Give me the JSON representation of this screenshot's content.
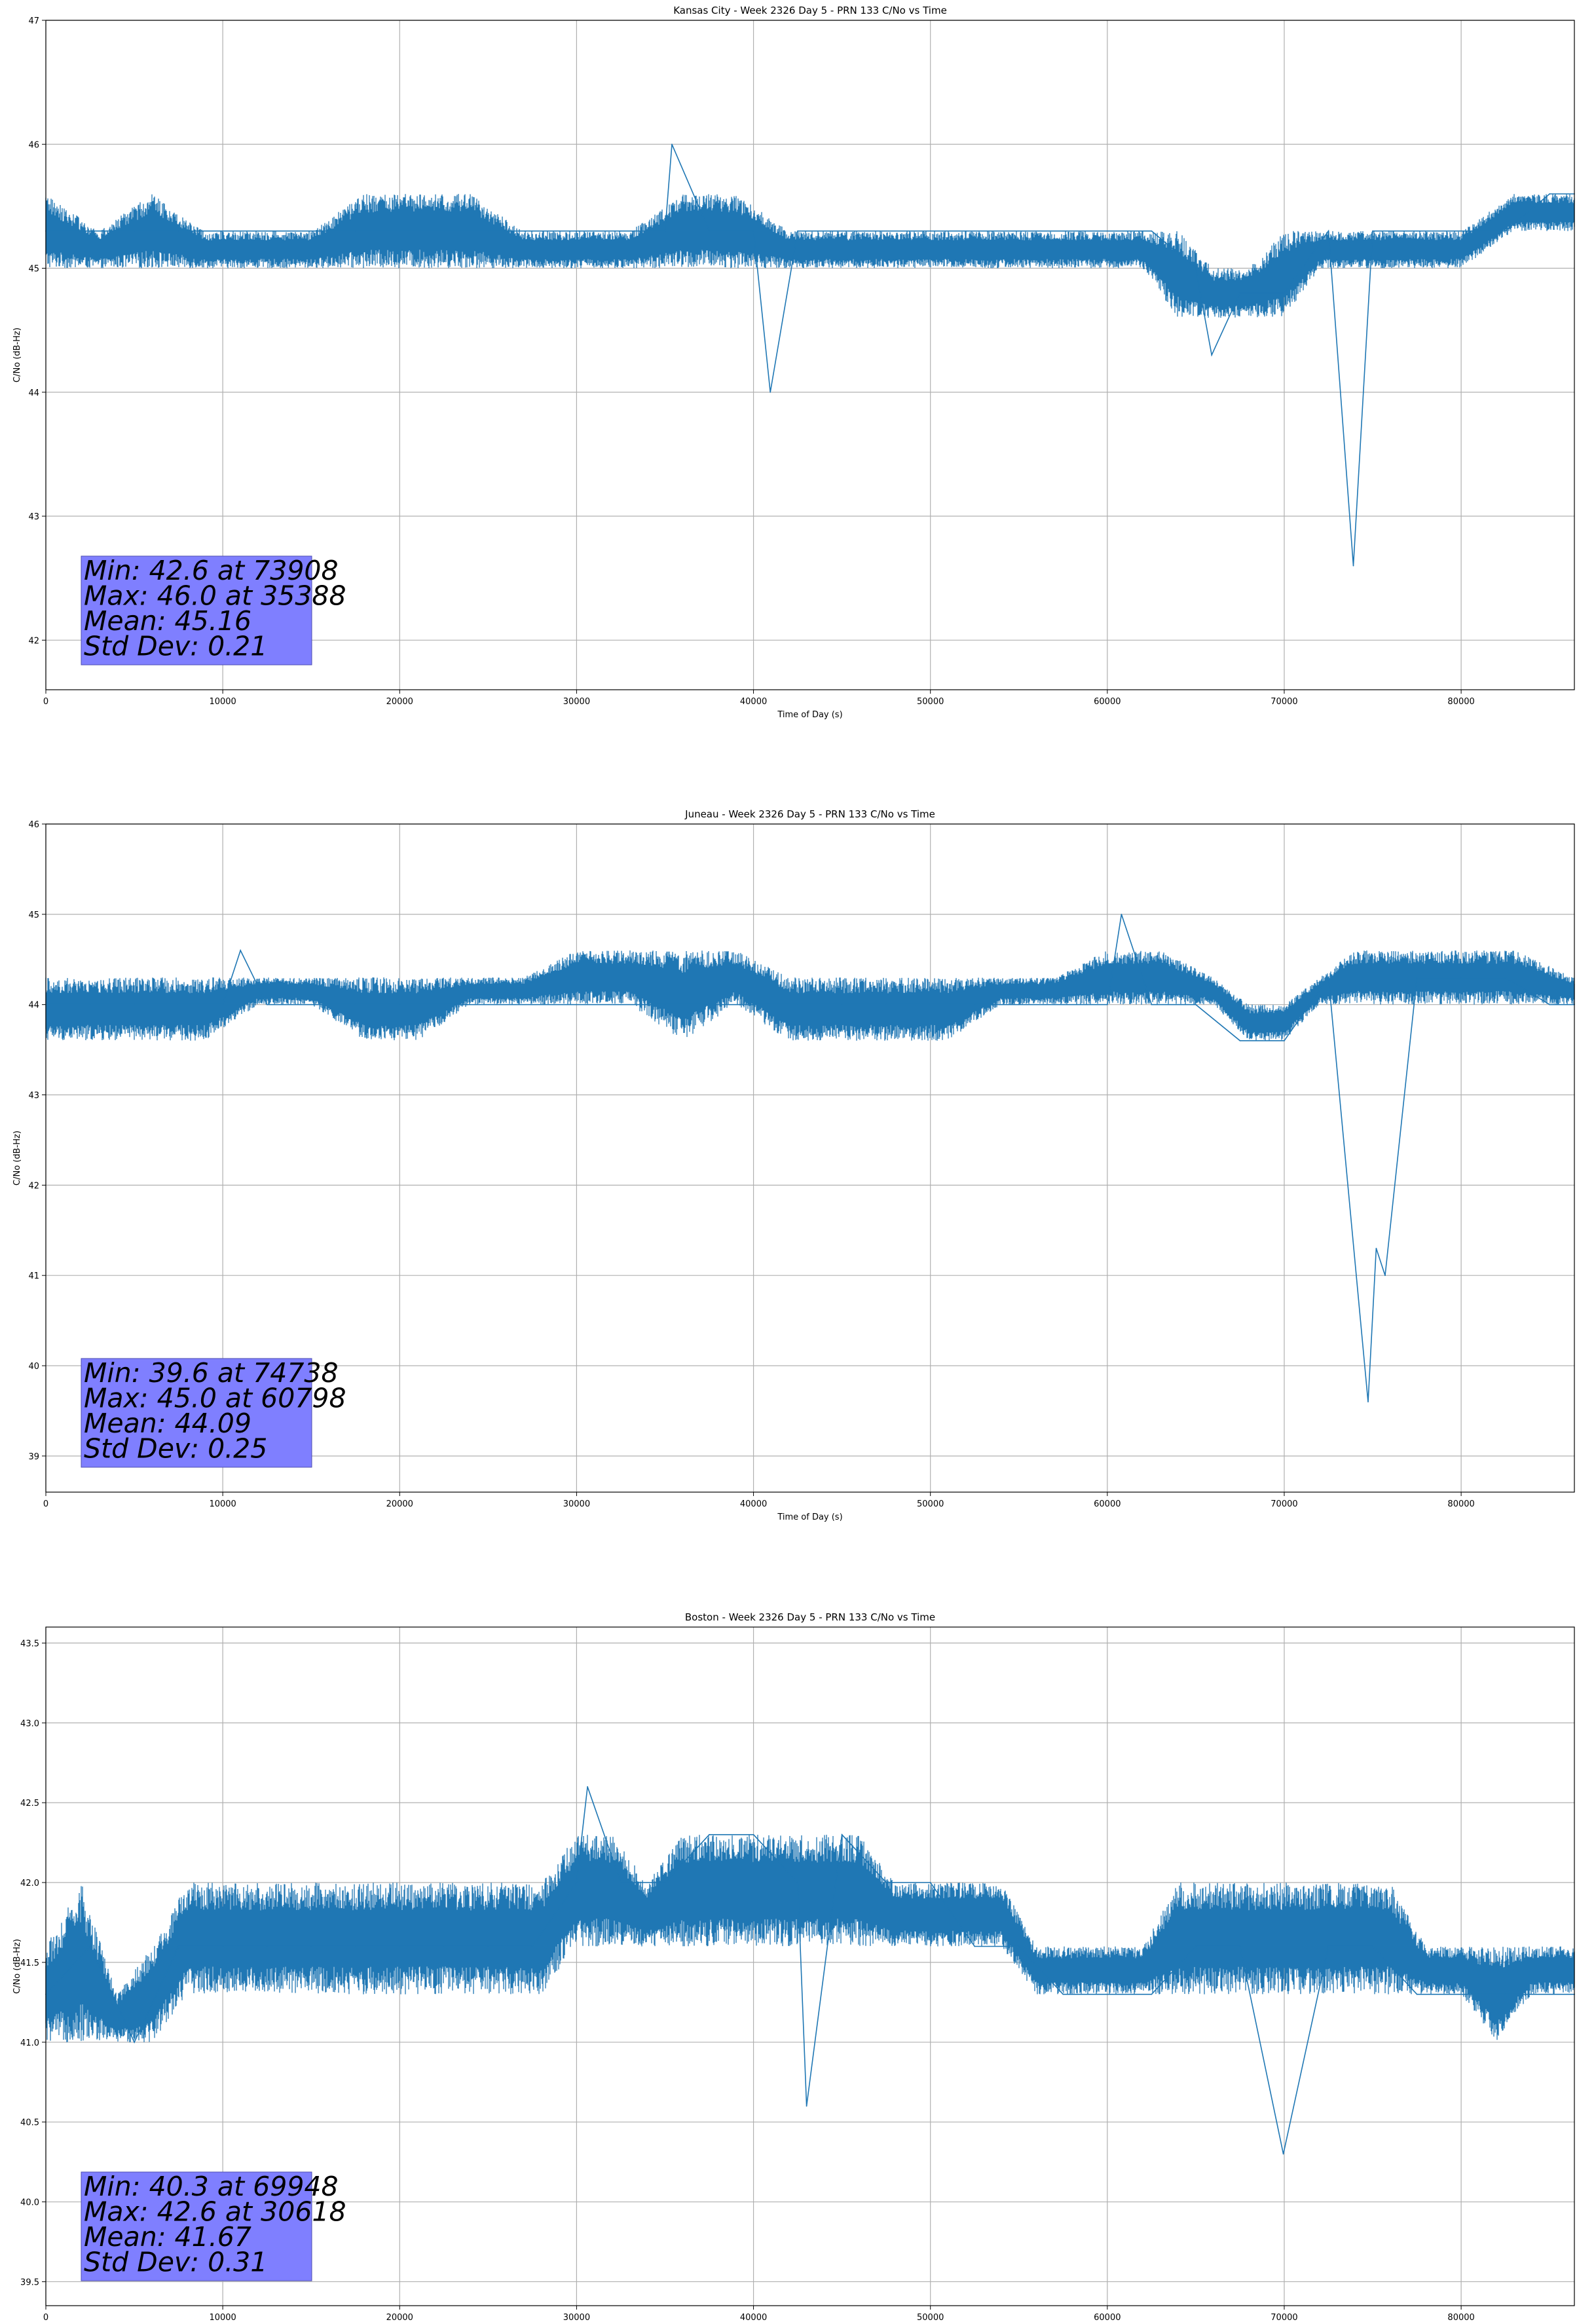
{
  "chart_data": [
    {
      "type": "line",
      "title": "Kansas City - Week 2326 Day 5 - PRN 133 C/No vs Time",
      "xlabel": "Time of Day (s)",
      "ylabel": "C/No (dB-Hz)",
      "xlim": [
        0,
        86400
      ],
      "ylim": [
        41.6,
        47.0
      ],
      "xticks": [
        "0",
        "10000",
        "20000",
        "30000",
        "40000",
        "50000",
        "60000",
        "70000",
        "80000"
      ],
      "yticks": [
        "42",
        "43",
        "44",
        "45",
        "46",
        "47"
      ],
      "grid": true,
      "color": "#1f77b4",
      "series": [
        {
          "x": [
            0,
            2500,
            5000,
            7500,
            10000,
            12500,
            15000,
            17500,
            20000,
            22500,
            25000,
            27500,
            30000,
            32500,
            35000,
            35388,
            37500,
            40000,
            40950,
            42500,
            45000,
            47500,
            50000,
            52500,
            55000,
            57500,
            60000,
            62500,
            65000,
            65900,
            67500,
            70000,
            72500,
            73908,
            75000,
            77500,
            80000,
            82500,
            85000,
            86400
          ],
          "values": [
            45.3,
            45.3,
            45.3,
            45.3,
            45.3,
            45.3,
            45.3,
            45.3,
            45.3,
            45.3,
            45.3,
            45.3,
            45.3,
            45.3,
            45.3,
            46.0,
            45.3,
            45.3,
            44.0,
            45.3,
            45.3,
            45.3,
            45.3,
            45.3,
            45.3,
            45.3,
            45.3,
            45.3,
            45.0,
            44.3,
            44.8,
            44.8,
            45.3,
            42.6,
            45.3,
            45.3,
            45.3,
            45.3,
            45.6,
            45.6
          ],
          "band_x": [
            0,
            3000,
            6000,
            9000,
            12000,
            15000,
            18000,
            21000,
            24000,
            27000,
            30000,
            33000,
            36000,
            39000,
            42000,
            45000,
            48000,
            51000,
            54000,
            57000,
            60000,
            62000,
            64000,
            66000,
            68000,
            70000,
            72000,
            74000,
            77000,
            80000,
            83000,
            86400
          ],
          "band_low": [
            45.0,
            45.0,
            45.0,
            45.0,
            45.0,
            45.0,
            45.0,
            45.0,
            45.0,
            45.0,
            45.0,
            45.0,
            45.0,
            45.0,
            45.0,
            45.0,
            45.0,
            45.0,
            45.0,
            45.0,
            45.0,
            45.0,
            44.6,
            44.6,
            44.6,
            44.6,
            45.0,
            45.0,
            45.0,
            45.0,
            45.3,
            45.3
          ],
          "band_high": [
            45.6,
            45.3,
            45.6,
            45.3,
            45.3,
            45.3,
            45.6,
            45.6,
            45.6,
            45.3,
            45.3,
            45.3,
            45.6,
            45.6,
            45.3,
            45.3,
            45.3,
            45.3,
            45.3,
            45.3,
            45.3,
            45.3,
            45.3,
            45.0,
            45.0,
            45.3,
            45.3,
            45.3,
            45.3,
            45.3,
            45.6,
            45.6
          ]
        }
      ],
      "stats": [
        "Min: 42.6 at 73908",
        "Max: 46.0 at 35388",
        "Mean: 45.16",
        "Std Dev: 0.21"
      ]
    },
    {
      "type": "line",
      "title": "Juneau - Week 2326 Day 5 - PRN 133 C/No vs Time",
      "xlabel": "Time of Day (s)",
      "ylabel": "C/No (dB-Hz)",
      "xlim": [
        0,
        86400
      ],
      "ylim": [
        38.6,
        46.0
      ],
      "xticks": [
        "0",
        "10000",
        "20000",
        "30000",
        "40000",
        "50000",
        "60000",
        "70000",
        "80000"
      ],
      "yticks": [
        "39",
        "40",
        "41",
        "42",
        "43",
        "44",
        "45",
        "46"
      ],
      "grid": true,
      "color": "#1f77b4",
      "series": [
        {
          "x": [
            0,
            2500,
            5000,
            7500,
            10000,
            11000,
            12500,
            15000,
            17500,
            20000,
            22500,
            25000,
            27500,
            30000,
            32500,
            35000,
            37500,
            40000,
            42500,
            45000,
            47500,
            50000,
            52500,
            55000,
            57500,
            60000,
            60798,
            62500,
            65000,
            67500,
            70000,
            72500,
            74738,
            75200,
            75700,
            77500,
            80000,
            82500,
            85000,
            86400
          ],
          "values": [
            44.0,
            44.0,
            44.0,
            44.0,
            44.0,
            44.6,
            44.0,
            44.0,
            44.0,
            44.0,
            44.0,
            44.0,
            44.0,
            44.0,
            44.0,
            44.0,
            44.0,
            44.0,
            44.0,
            44.0,
            44.0,
            44.0,
            44.0,
            44.0,
            44.0,
            44.0,
            45.0,
            44.0,
            44.0,
            43.6,
            43.6,
            44.3,
            39.6,
            41.3,
            41.0,
            44.3,
            44.3,
            44.3,
            44.0,
            44.0
          ],
          "band_x": [
            0,
            3000,
            6000,
            9000,
            12000,
            15000,
            18000,
            21000,
            24000,
            27000,
            30000,
            33000,
            36000,
            39000,
            42000,
            45000,
            48000,
            51000,
            54000,
            57000,
            60000,
            63000,
            66000,
            68000,
            70000,
            72000,
            74000,
            77000,
            80000,
            83000,
            86400
          ],
          "band_low": [
            43.6,
            43.6,
            43.6,
            43.6,
            44.0,
            44.0,
            43.6,
            43.6,
            44.0,
            44.0,
            44.0,
            44.0,
            43.6,
            44.0,
            43.6,
            43.6,
            43.6,
            43.6,
            44.0,
            44.0,
            44.0,
            44.0,
            44.0,
            43.6,
            43.6,
            44.0,
            44.0,
            44.0,
            44.0,
            44.0,
            44.0
          ],
          "band_high": [
            44.3,
            44.3,
            44.3,
            44.3,
            44.3,
            44.3,
            44.3,
            44.3,
            44.3,
            44.3,
            44.6,
            44.6,
            44.6,
            44.6,
            44.3,
            44.3,
            44.3,
            44.3,
            44.3,
            44.3,
            44.6,
            44.6,
            44.3,
            44.0,
            44.0,
            44.3,
            44.6,
            44.6,
            44.6,
            44.6,
            44.3
          ]
        }
      ],
      "stats": [
        "Min: 39.6 at 74738",
        "Max: 45.0 at 60798",
        "Mean: 44.09",
        "Std Dev: 0.25"
      ]
    },
    {
      "type": "line",
      "title": "Boston - Week 2326 Day 5 - PRN 133 C/No vs Time",
      "xlabel": "Time of Day (s)",
      "ylabel": "C/No (dB-Hz)",
      "xlim": [
        0,
        86400
      ],
      "ylim": [
        39.35,
        43.6
      ],
      "xticks": [
        "0",
        "10000",
        "20000",
        "30000",
        "40000",
        "50000",
        "60000",
        "70000",
        "80000"
      ],
      "yticks": [
        "39.5",
        "40.0",
        "40.5",
        "41.0",
        "41.5",
        "42.0",
        "42.5",
        "43.0",
        "43.5"
      ],
      "grid": true,
      "color": "#1f77b4",
      "series": [
        {
          "x": [
            0,
            2500,
            5000,
            7500,
            10000,
            12500,
            15000,
            17500,
            20000,
            22500,
            25000,
            27500,
            30000,
            30618,
            32500,
            35000,
            37500,
            40000,
            42500,
            43000,
            45000,
            47500,
            50000,
            52500,
            55000,
            57500,
            60000,
            62500,
            65000,
            67500,
            69948,
            72500,
            75000,
            77500,
            80000,
            82500,
            85000,
            86400
          ],
          "values": [
            41.3,
            41.6,
            41.0,
            41.6,
            41.6,
            41.6,
            41.6,
            41.6,
            41.6,
            41.6,
            41.6,
            41.6,
            42.0,
            42.6,
            42.0,
            42.0,
            42.3,
            42.3,
            42.0,
            40.6,
            42.3,
            42.0,
            42.0,
            41.6,
            41.6,
            41.3,
            41.3,
            41.3,
            41.6,
            41.6,
            40.3,
            41.6,
            41.6,
            41.3,
            41.3,
            41.3,
            41.3,
            41.3
          ],
          "band_x": [
            0,
            2000,
            4000,
            6000,
            8000,
            10000,
            12000,
            14000,
            16000,
            18000,
            20000,
            22000,
            24000,
            26000,
            28000,
            30000,
            32000,
            34000,
            36000,
            38000,
            40000,
            42000,
            44000,
            46000,
            48000,
            50000,
            52000,
            54000,
            56000,
            58000,
            60000,
            62000,
            64000,
            66000,
            68000,
            70000,
            72000,
            74000,
            76000,
            78000,
            80000,
            82000,
            84000,
            86400
          ],
          "band_low": [
            41.0,
            41.0,
            41.0,
            41.0,
            41.3,
            41.3,
            41.3,
            41.3,
            41.3,
            41.3,
            41.3,
            41.3,
            41.3,
            41.3,
            41.3,
            41.6,
            41.6,
            41.6,
            41.6,
            41.6,
            41.6,
            41.6,
            41.6,
            41.6,
            41.6,
            41.6,
            41.6,
            41.6,
            41.3,
            41.3,
            41.3,
            41.3,
            41.3,
            41.3,
            41.3,
            41.3,
            41.3,
            41.3,
            41.3,
            41.3,
            41.3,
            41.0,
            41.3,
            41.3
          ],
          "band_high": [
            41.6,
            42.0,
            41.3,
            41.6,
            42.0,
            42.0,
            42.0,
            42.0,
            42.0,
            42.0,
            42.0,
            42.0,
            42.0,
            42.0,
            42.0,
            42.3,
            42.3,
            42.0,
            42.3,
            42.3,
            42.3,
            42.3,
            42.3,
            42.3,
            42.0,
            42.0,
            42.0,
            42.0,
            41.6,
            41.6,
            41.6,
            41.6,
            42.0,
            42.0,
            42.0,
            42.0,
            42.0,
            42.0,
            42.0,
            41.6,
            41.6,
            41.6,
            41.6,
            41.6
          ]
        }
      ],
      "stats": [
        "Min: 40.3 at 69948",
        "Max: 42.6 at 30618",
        "Mean: 41.67",
        "Std Dev: 0.31"
      ]
    }
  ]
}
